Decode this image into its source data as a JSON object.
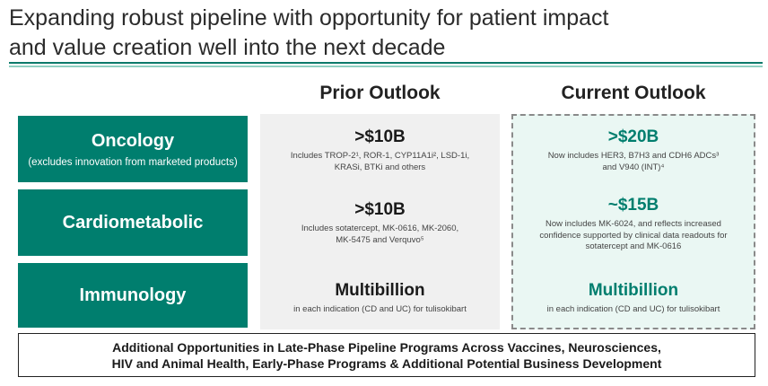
{
  "title": {
    "line1": "Expanding robust pipeline with opportunity for patient impact",
    "line2": "and value creation well into the next decade"
  },
  "columns": {
    "prior": "Prior Outlook",
    "current": "Current Outlook"
  },
  "categories": [
    {
      "name": "Oncology",
      "sub": "(excludes innovation from marketed products)"
    },
    {
      "name": "Cardiometabolic",
      "sub": ""
    },
    {
      "name": "Immunology",
      "sub": ""
    }
  ],
  "prior": [
    {
      "value": ">$10B",
      "lines": [
        "Includes TROP-2¹, ROR-1, CYP11A1i², LSD-1i,",
        "KRASi, BTKi and others"
      ]
    },
    {
      "value": ">$10B",
      "lines": [
        "Includes sotatercept, MK-0616, MK-2060,",
        "MK-5475 and Verquvo⁵"
      ]
    },
    {
      "value": "Multibillion",
      "lines": [
        "in each indication (CD and UC) for tulisokibart"
      ]
    }
  ],
  "current": [
    {
      "value": ">$20B",
      "lines": [
        "Now includes HER3, B7H3 and CDH6 ADCs³",
        "and V940 (INT)⁴"
      ]
    },
    {
      "value": "~$15B",
      "lines": [
        "Now includes MK-6024, and reflects increased",
        "confidence supported by clinical data readouts for",
        "sotatercept and MK-0616"
      ]
    },
    {
      "value": "Multibillion",
      "lines": [
        "in each indication (CD and UC) for tulisokibart"
      ]
    }
  ],
  "bottom": {
    "line1": "Additional Opportunities in Late-Phase Pipeline Programs Across Vaccines, Neurosciences,",
    "line2": "HIV and Animal Health, Early-Phase Programs & Additional Potential Business Development"
  },
  "colors": {
    "accent": "#007e6e",
    "accent_light": "#8fd1c2"
  }
}
